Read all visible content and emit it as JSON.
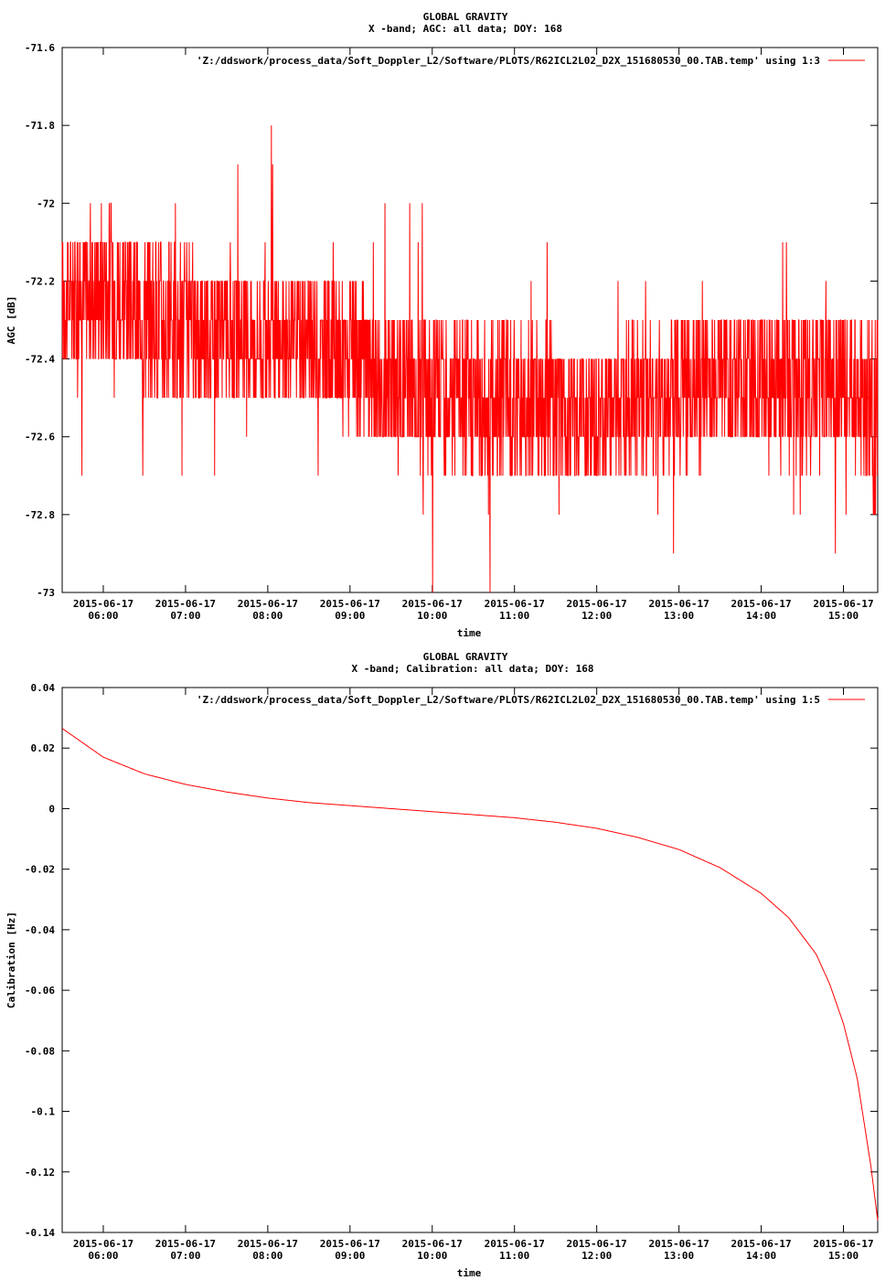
{
  "chart_data": [
    {
      "type": "line",
      "title": "GLOBAL GRAVITY",
      "subtitle": "X -band; AGC: all data; DOY: 168",
      "xlabel": "time",
      "ylabel": "AGC [dB]",
      "ylim": [
        -73,
        -71.6
      ],
      "yticks": [
        -71.6,
        -71.8,
        -72,
        -72.2,
        -72.4,
        -72.6,
        -72.8,
        -73
      ],
      "ytick_labels": [
        "-71.6",
        "-71.8",
        "-72",
        "-72.2",
        "-72.4",
        "-72.6",
        "-72.8",
        "-73"
      ],
      "xlim": [
        "2015-06-17 05:30",
        "2015-06-17 15:25"
      ],
      "xticks": [
        "06:00",
        "07:00",
        "08:00",
        "09:00",
        "10:00",
        "11:00",
        "12:00",
        "13:00",
        "14:00",
        "15:00"
      ],
      "xtick_date": "2015-06-17",
      "legend": "top-right",
      "series": [
        {
          "name": "'Z:/ddswork/process_data/Soft_Doppler_L2/Software/PLOTS/R62ICL2L02_D2X_151680530_00.TAB.temp' using 1:3",
          "color": "#ff0000",
          "x": [
            "05:30",
            "06:00",
            "06:30",
            "07:00",
            "07:30",
            "08:00",
            "08:30",
            "09:00",
            "09:30",
            "10:00",
            "10:30",
            "11:00",
            "11:30",
            "12:00",
            "12:30",
            "13:00",
            "13:30",
            "14:00",
            "14:30",
            "15:00",
            "15:25"
          ],
          "y": [
            -72.25,
            -72.2,
            -72.28,
            -72.33,
            -72.32,
            -72.35,
            -72.36,
            -72.4,
            -72.45,
            -72.46,
            -72.5,
            -72.5,
            -72.53,
            -72.55,
            -72.5,
            -72.48,
            -72.45,
            -72.45,
            -72.48,
            -72.45,
            -72.55
          ],
          "spread": [
            0.18,
            0.2,
            0.2,
            0.2,
            0.18,
            0.16,
            0.16,
            0.18,
            0.2,
            0.2,
            0.22,
            0.2,
            0.2,
            0.18,
            0.18,
            0.2,
            0.2,
            0.2,
            0.2,
            0.2,
            0.25
          ]
        }
      ]
    },
    {
      "type": "line",
      "title": "GLOBAL GRAVITY",
      "subtitle": "X -band; Calibration: all data; DOY: 168",
      "xlabel": "time",
      "ylabel": "Calibration [Hz]",
      "ylim": [
        -0.14,
        0.04
      ],
      "yticks": [
        0.04,
        0.02,
        0,
        -0.02,
        -0.04,
        -0.06,
        -0.08,
        -0.1,
        -0.12,
        -0.14
      ],
      "ytick_labels": [
        "0.04",
        "0.02",
        "0",
        "-0.02",
        "-0.04",
        "-0.06",
        "-0.08",
        "-0.1",
        "-0.12",
        "-0.14"
      ],
      "xlim": [
        "2015-06-17 05:30",
        "2015-06-17 15:25"
      ],
      "xticks": [
        "06:00",
        "07:00",
        "08:00",
        "09:00",
        "10:00",
        "11:00",
        "12:00",
        "13:00",
        "14:00",
        "15:00"
      ],
      "xtick_date": "2015-06-17",
      "legend": "top-right",
      "series": [
        {
          "name": "'Z:/ddswork/process_data/Soft_Doppler_L2/Software/PLOTS/R62ICL2L02_D2X_151680530_00.TAB.temp' using 1:5",
          "color": "#ff0000",
          "x": [
            "05:30",
            "06:00",
            "06:30",
            "07:00",
            "07:30",
            "08:00",
            "08:30",
            "09:00",
            "09:30",
            "10:00",
            "10:30",
            "11:00",
            "11:30",
            "12:00",
            "12:30",
            "13:00",
            "13:30",
            "14:00",
            "14:20",
            "14:40",
            "14:50",
            "15:00",
            "15:10",
            "15:20",
            "15:25"
          ],
          "y": [
            0.0265,
            0.017,
            0.0115,
            0.008,
            0.0055,
            0.0035,
            0.002,
            0.001,
            0.0,
            -0.001,
            -0.002,
            -0.003,
            -0.0045,
            -0.0065,
            -0.0095,
            -0.0135,
            -0.0195,
            -0.028,
            -0.036,
            -0.048,
            -0.058,
            -0.071,
            -0.089,
            -0.118,
            -0.136
          ]
        }
      ]
    }
  ]
}
